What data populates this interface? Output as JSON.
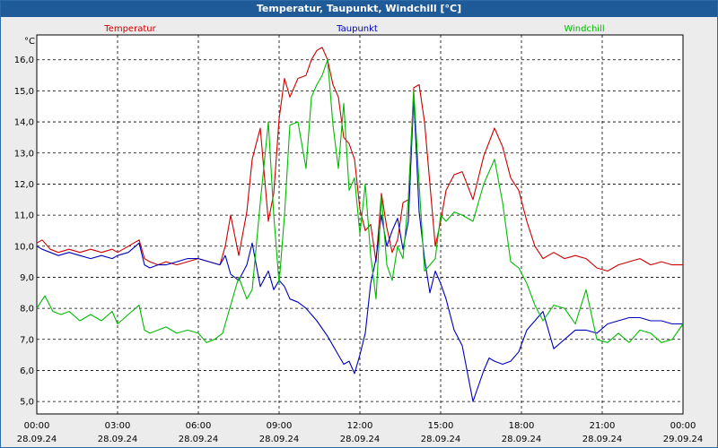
{
  "window": {
    "title": "Temperatur, Taupunkt, Windchill [°C]"
  },
  "chart_data": {
    "type": "line",
    "title": "Temperatur, Taupunkt, Windchill [°C]",
    "ylabel": "°C",
    "ylim": [
      4.6,
      16.8
    ],
    "yticks": [
      5.0,
      6.0,
      7.0,
      8.0,
      9.0,
      10.0,
      11.0,
      12.0,
      13.0,
      14.0,
      15.0,
      16.0
    ],
    "ytick_labels": [
      "5,0",
      "6,0",
      "7,0",
      "8,0",
      "9,0",
      "10,0",
      "11,0",
      "12,0",
      "13,0",
      "14,0",
      "15,0",
      "16,0"
    ],
    "xlim": [
      0,
      24
    ],
    "xticks": [
      {
        "h": 0,
        "time": "00:00",
        "date": "28.09.24"
      },
      {
        "h": 3,
        "time": "03:00",
        "date": "28.09.24"
      },
      {
        "h": 6,
        "time": "06:00",
        "date": "28.09.24"
      },
      {
        "h": 9,
        "time": "09:00",
        "date": "28.09.24"
      },
      {
        "h": 12,
        "time": "12:00",
        "date": "28.09.24"
      },
      {
        "h": 15,
        "time": "15:00",
        "date": "28.09.24"
      },
      {
        "h": 18,
        "time": "18:00",
        "date": "28.09.24"
      },
      {
        "h": 21,
        "time": "21:00",
        "date": "28.09.24"
      },
      {
        "h": 24,
        "time": "00:00",
        "date": "29.09.24"
      }
    ],
    "grid": true,
    "series": [
      {
        "name": "Temperatur",
        "color": "#cc0000",
        "legend_pos": "left",
        "x": [
          0,
          0.2,
          0.5,
          0.8,
          1.2,
          1.6,
          2.0,
          2.4,
          2.8,
          3.0,
          3.4,
          3.8,
          4.0,
          4.2,
          4.5,
          4.8,
          5.2,
          5.6,
          6.0,
          6.4,
          6.8,
          7.0,
          7.2,
          7.5,
          7.8,
          8.0,
          8.3,
          8.6,
          8.8,
          9.0,
          9.2,
          9.4,
          9.7,
          10.0,
          10.2,
          10.4,
          10.6,
          10.8,
          11.0,
          11.2,
          11.4,
          11.6,
          11.8,
          12.0,
          12.2,
          12.4,
          12.6,
          12.8,
          13.0,
          13.2,
          13.4,
          13.6,
          13.8,
          14.0,
          14.2,
          14.4,
          14.6,
          14.8,
          15.0,
          15.2,
          15.5,
          15.8,
          16.2,
          16.6,
          17.0,
          17.3,
          17.6,
          17.9,
          18.2,
          18.5,
          18.8,
          19.2,
          19.6,
          20.0,
          20.4,
          20.8,
          21.2,
          21.6,
          22.0,
          22.4,
          22.8,
          23.2,
          23.6,
          24.0
        ],
        "y": [
          10.1,
          10.2,
          9.9,
          9.8,
          9.9,
          9.8,
          9.9,
          9.8,
          9.9,
          9.8,
          10.0,
          10.2,
          9.6,
          9.5,
          9.4,
          9.5,
          9.4,
          9.5,
          9.6,
          9.5,
          9.4,
          10.0,
          11.0,
          9.7,
          11.1,
          12.8,
          13.8,
          10.8,
          11.7,
          14.1,
          15.4,
          14.8,
          15.4,
          15.5,
          16.0,
          16.3,
          16.4,
          16.0,
          15.2,
          14.8,
          13.5,
          13.3,
          12.8,
          11.2,
          10.5,
          10.7,
          9.5,
          11.7,
          10.6,
          9.8,
          10.2,
          11.4,
          11.5,
          15.1,
          15.2,
          14.0,
          12.0,
          10.0,
          10.8,
          11.8,
          12.3,
          12.4,
          11.5,
          12.9,
          13.8,
          13.2,
          12.2,
          11.8,
          10.8,
          10.0,
          9.6,
          9.8,
          9.6,
          9.7,
          9.6,
          9.3,
          9.2,
          9.4,
          9.5,
          9.6,
          9.4,
          9.5,
          9.4,
          9.4
        ]
      },
      {
        "name": "Taupunkt",
        "color": "#0000bb",
        "legend_pos": "center",
        "x": [
          0,
          0.2,
          0.5,
          0.8,
          1.2,
          1.6,
          2.0,
          2.4,
          2.8,
          3.0,
          3.4,
          3.8,
          4.0,
          4.2,
          4.5,
          4.8,
          5.2,
          5.6,
          6.0,
          6.4,
          6.8,
          7.0,
          7.2,
          7.5,
          7.8,
          8.0,
          8.3,
          8.6,
          8.8,
          9.0,
          9.2,
          9.4,
          9.7,
          10.0,
          10.4,
          10.8,
          11.0,
          11.2,
          11.4,
          11.6,
          11.8,
          12.0,
          12.2,
          12.4,
          12.6,
          12.8,
          13.0,
          13.2,
          13.4,
          13.6,
          13.8,
          14.0,
          14.2,
          14.4,
          14.6,
          14.8,
          15.0,
          15.2,
          15.5,
          15.8,
          16.2,
          16.6,
          16.8,
          17.0,
          17.3,
          17.6,
          17.9,
          18.2,
          18.5,
          18.8,
          19.2,
          19.6,
          20.0,
          20.4,
          20.8,
          21.2,
          21.6,
          22.0,
          22.4,
          22.8,
          23.2,
          23.6,
          24.0
        ],
        "y": [
          10.0,
          9.9,
          9.8,
          9.7,
          9.8,
          9.7,
          9.6,
          9.7,
          9.6,
          9.7,
          9.8,
          10.1,
          9.4,
          9.3,
          9.4,
          9.4,
          9.5,
          9.6,
          9.6,
          9.5,
          9.4,
          9.7,
          9.1,
          8.9,
          9.4,
          10.1,
          8.7,
          9.2,
          8.6,
          8.9,
          8.7,
          8.3,
          8.2,
          8.0,
          7.6,
          7.1,
          6.8,
          6.5,
          6.2,
          6.3,
          5.9,
          6.5,
          7.2,
          8.8,
          9.6,
          11.0,
          10.0,
          10.5,
          10.9,
          9.9,
          10.8,
          14.8,
          11.1,
          9.6,
          8.5,
          9.2,
          8.8,
          8.3,
          7.3,
          6.8,
          5.0,
          6.0,
          6.4,
          6.3,
          6.2,
          6.3,
          6.6,
          7.3,
          7.6,
          7.9,
          6.7,
          7.0,
          7.3,
          7.3,
          7.2,
          7.5,
          7.6,
          7.7,
          7.7,
          7.6,
          7.6,
          7.5,
          7.5
        ]
      },
      {
        "name": "Windchill",
        "color": "#00bb00",
        "legend_pos": "right",
        "x": [
          0,
          0.3,
          0.6,
          0.9,
          1.2,
          1.6,
          2.0,
          2.4,
          2.8,
          3.0,
          3.4,
          3.8,
          4.0,
          4.2,
          4.5,
          4.8,
          5.2,
          5.6,
          6.0,
          6.3,
          6.6,
          6.9,
          7.2,
          7.5,
          7.8,
          8.0,
          8.3,
          8.6,
          8.8,
          9.0,
          9.2,
          9.4,
          9.7,
          10.0,
          10.2,
          10.4,
          10.6,
          10.8,
          11.0,
          11.2,
          11.4,
          11.6,
          11.8,
          12.0,
          12.2,
          12.4,
          12.6,
          12.8,
          13.0,
          13.2,
          13.4,
          13.6,
          13.8,
          14.0,
          14.2,
          14.4,
          14.6,
          14.8,
          15.0,
          15.2,
          15.5,
          15.8,
          16.2,
          16.6,
          17.0,
          17.3,
          17.6,
          17.9,
          18.2,
          18.5,
          18.8,
          19.2,
          19.6,
          20.0,
          20.4,
          20.8,
          21.2,
          21.6,
          22.0,
          22.4,
          22.8,
          23.2,
          23.6,
          24.0
        ],
        "y": [
          8.0,
          8.4,
          7.9,
          7.8,
          7.9,
          7.6,
          7.8,
          7.6,
          7.9,
          7.5,
          7.8,
          8.1,
          7.3,
          7.2,
          7.3,
          7.4,
          7.2,
          7.3,
          7.2,
          6.9,
          7.0,
          7.2,
          8.1,
          9.0,
          8.3,
          8.6,
          11.4,
          14.0,
          11.0,
          8.8,
          11.0,
          13.9,
          14.0,
          12.5,
          14.8,
          15.2,
          15.5,
          16.0,
          13.9,
          12.5,
          14.6,
          11.8,
          12.2,
          10.4,
          12.0,
          9.7,
          8.3,
          11.6,
          9.4,
          8.9,
          10.0,
          9.6,
          11.5,
          15.0,
          12.0,
          9.2,
          9.4,
          9.6,
          11.0,
          10.8,
          11.1,
          11.0,
          10.8,
          12.0,
          12.8,
          11.4,
          9.5,
          9.3,
          8.8,
          8.1,
          7.6,
          8.1,
          8.0,
          7.5,
          8.6,
          7.0,
          6.9,
          7.2,
          6.9,
          7.3,
          7.2,
          6.9,
          7.0,
          7.5
        ]
      }
    ]
  }
}
